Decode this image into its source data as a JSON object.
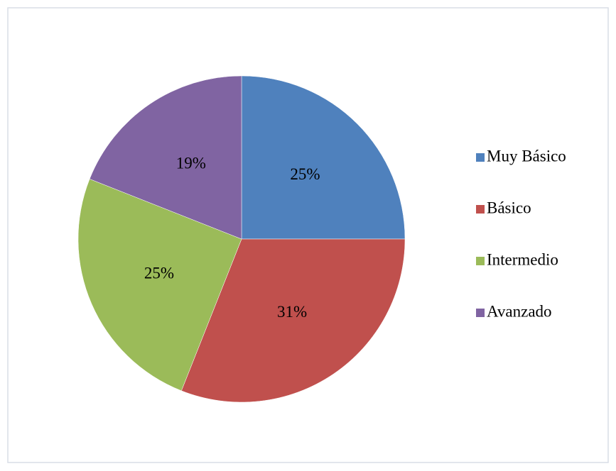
{
  "chart_data": {
    "type": "pie",
    "categories": [
      "Muy Básico",
      "Básico",
      "Intermedio",
      "Avanzado"
    ],
    "values": [
      25,
      31,
      25,
      19
    ],
    "value_labels": [
      "25%",
      "31%",
      "25%",
      "19%"
    ],
    "colors": [
      "#4f81bd",
      "#c0504d",
      "#9bbb59",
      "#8064a2"
    ],
    "legend": "right"
  }
}
